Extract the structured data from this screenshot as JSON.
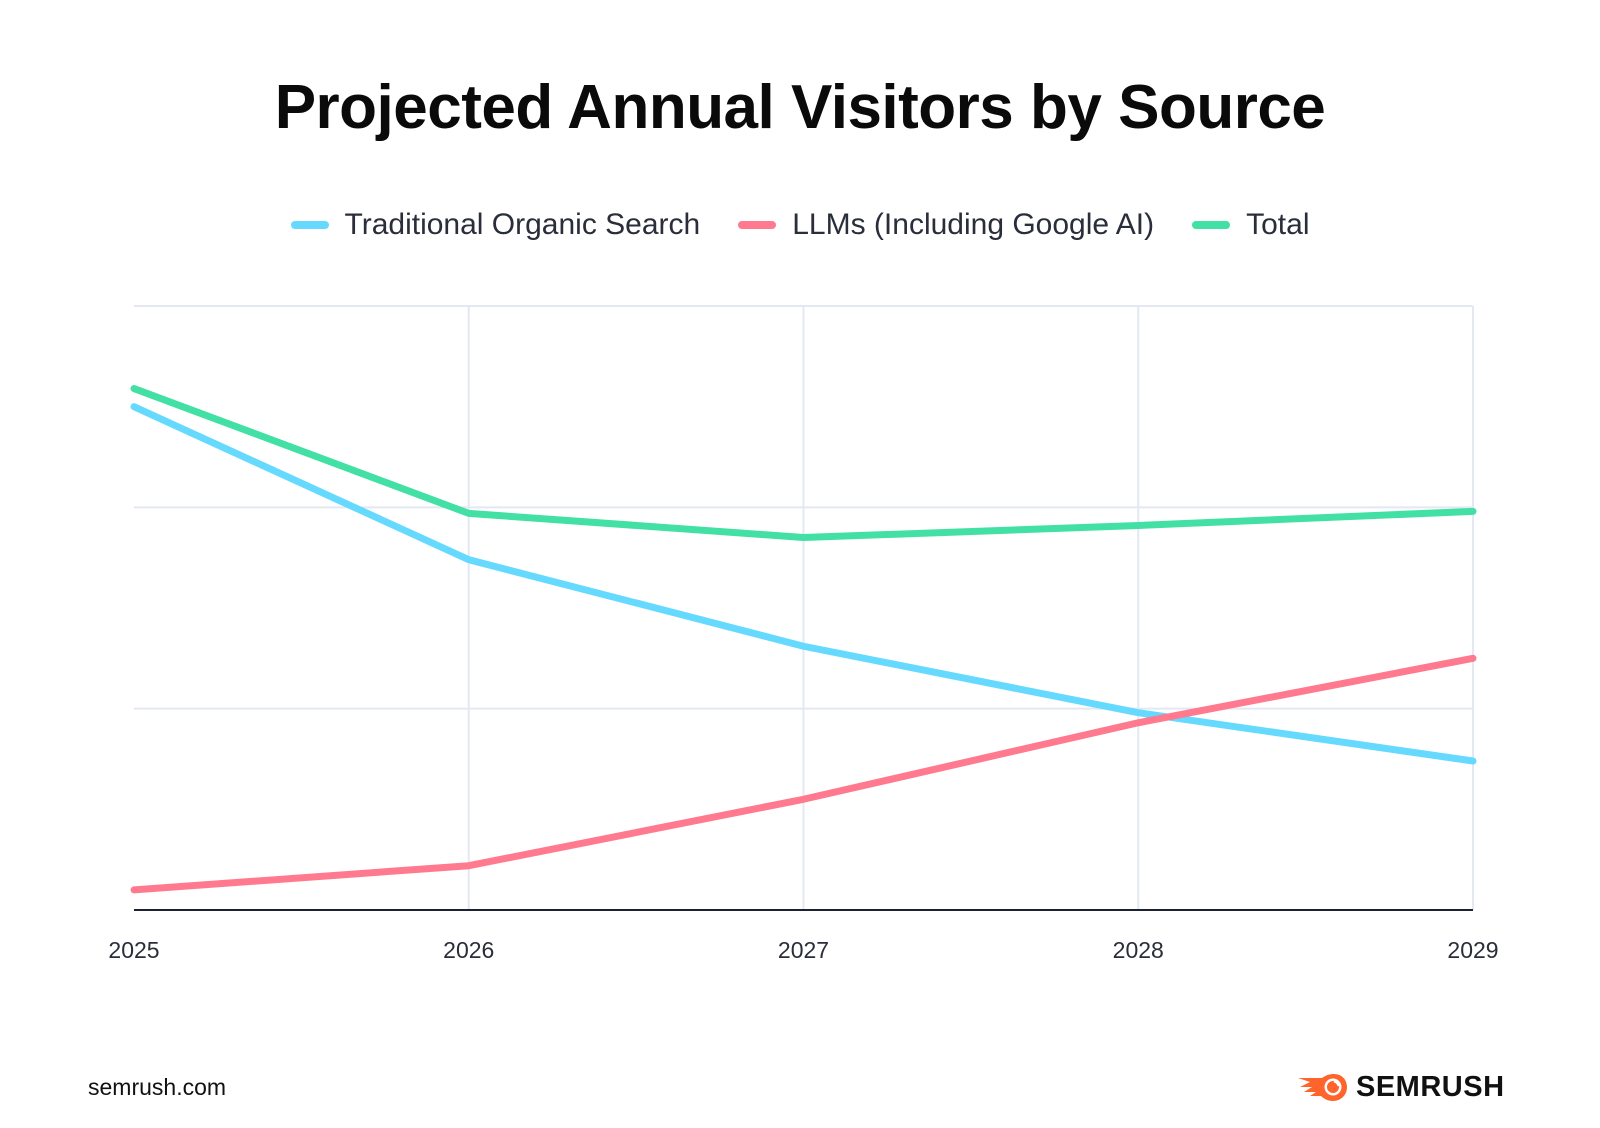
{
  "chart_data": {
    "type": "line",
    "title": "Projected Annual Visitors by Source",
    "xlabel": "",
    "ylabel": "",
    "x": [
      "2025",
      "2026",
      "2027",
      "2028",
      "2029"
    ],
    "ylim": [
      0,
      3
    ],
    "y_gridlines": [
      1,
      2,
      3
    ],
    "y_tick_labels_shown": false,
    "grid": true,
    "legend_position": "top-center",
    "series": [
      {
        "name": "Traditional Organic Search",
        "color": "#66d9ff",
        "values": [
          2.5,
          1.74,
          1.31,
          0.98,
          0.74
        ]
      },
      {
        "name": "LLMs (Including Google AI)",
        "color": "#ff7a8e",
        "values": [
          0.1,
          0.22,
          0.55,
          0.93,
          1.25
        ]
      },
      {
        "name": "Total",
        "color": "#42e0a4",
        "values": [
          2.59,
          1.97,
          1.85,
          1.91,
          1.98
        ]
      }
    ]
  },
  "footer": {
    "source": "semrush.com",
    "brand": "SEMRUSH"
  },
  "colors": {
    "grid": "#e3e8f2",
    "axis": "#1c2233",
    "brand_orange": "#ff642d"
  }
}
